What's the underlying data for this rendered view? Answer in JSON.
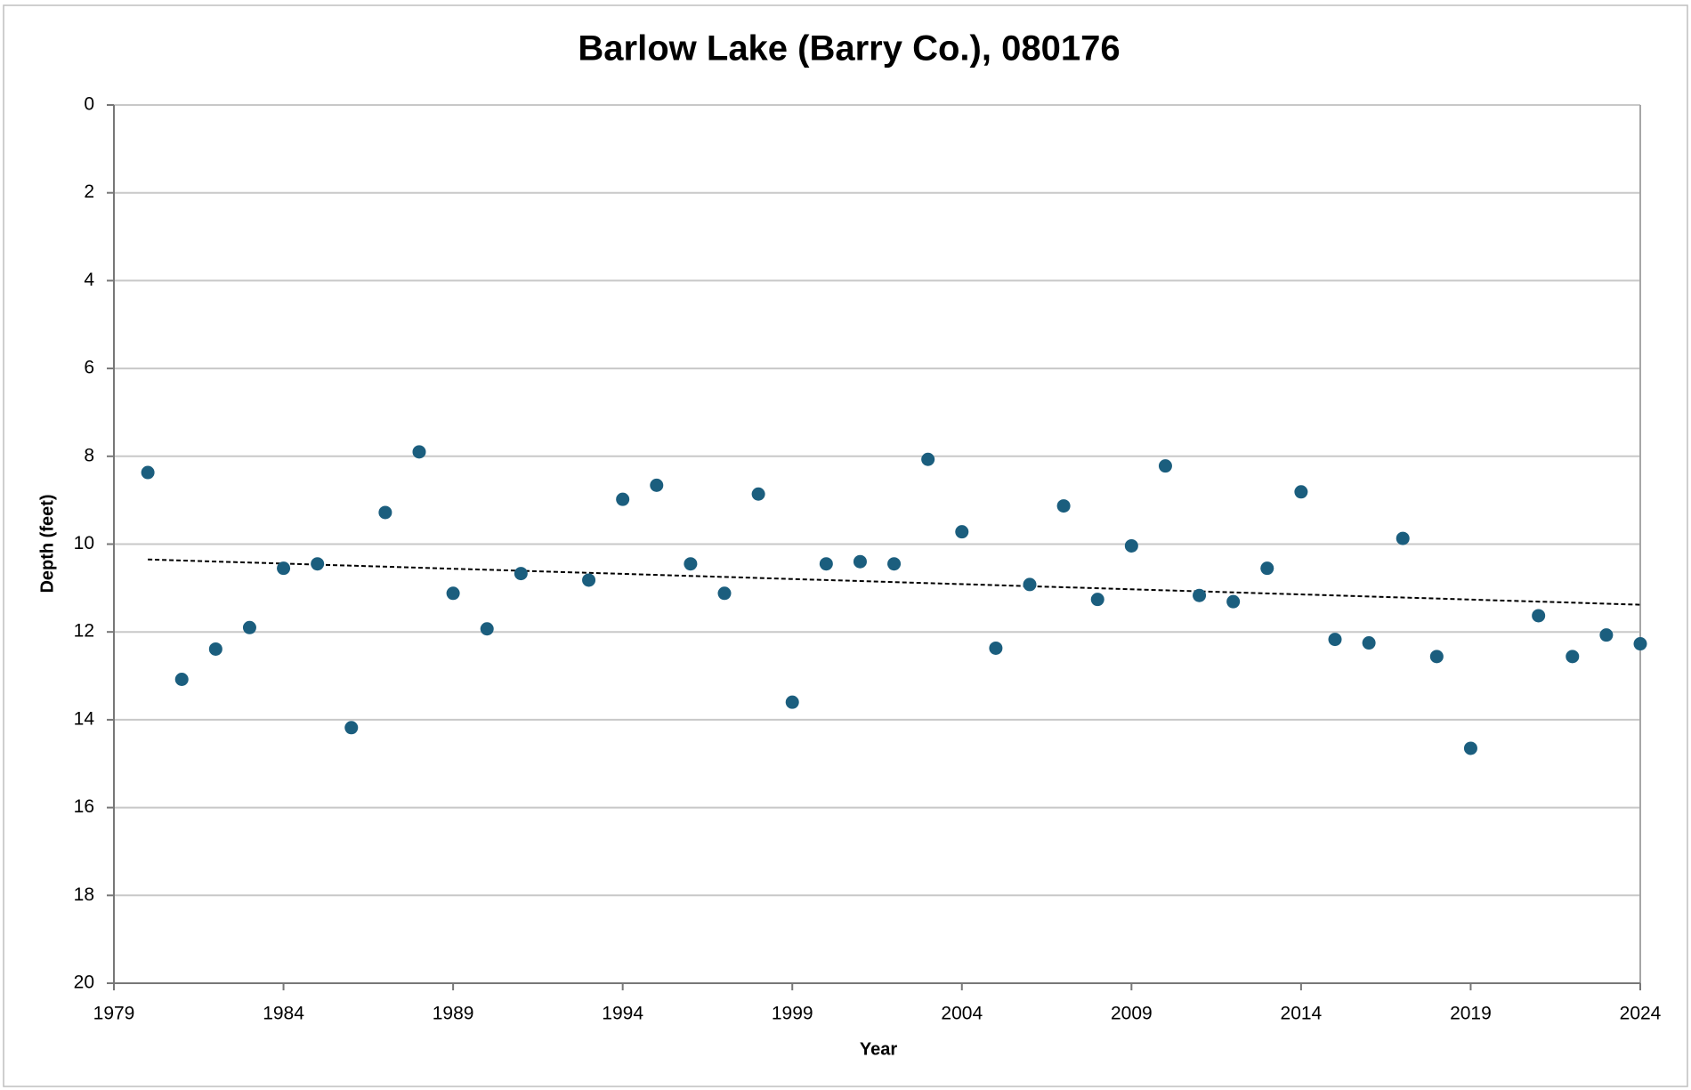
{
  "chart_data": {
    "type": "scatter",
    "title": "Barlow Lake (Barry Co.), 080176",
    "x_label": "Year",
    "y_label": "Depth (feet)",
    "x": [
      1980,
      1981,
      1982,
      1983,
      1984,
      1985,
      1986,
      1987,
      1988,
      1989,
      1990,
      1991,
      1993,
      1994,
      1995,
      1996,
      1997,
      1998,
      1999,
      2000,
      2001,
      2002,
      2003,
      2004,
      2005,
      2006,
      2007,
      2008,
      2009,
      2010,
      2011,
      2012,
      2013,
      2014,
      2015,
      2016,
      2017,
      2018,
      2019,
      2021,
      2022,
      2023,
      2024
    ],
    "values": [
      8.37,
      13.08,
      12.39,
      11.9,
      10.55,
      10.45,
      14.18,
      9.28,
      7.9,
      11.12,
      11.93,
      10.67,
      10.82,
      8.98,
      8.66,
      10.45,
      11.12,
      8.86,
      13.6,
      10.45,
      10.4,
      10.45,
      8.07,
      9.72,
      12.37,
      10.92,
      9.13,
      11.26,
      10.04,
      8.22,
      11.17,
      11.31,
      10.55,
      8.81,
      12.17,
      12.25,
      9.87,
      12.56,
      14.65,
      11.63,
      12.56,
      12.07,
      12.27
    ],
    "color": "#1b5e7e",
    "trendline": {
      "x": [
        1980,
        2024
      ],
      "values": [
        10.35,
        11.38
      ],
      "color": "#000000",
      "dash": true
    },
    "xlim": [
      1979,
      2024
    ],
    "xticks": [
      1979,
      1984,
      1989,
      1994,
      1999,
      2004,
      2009,
      2014,
      2019,
      2024
    ],
    "ylim": [
      0,
      20
    ],
    "yticks": [
      0,
      2,
      4,
      6,
      8,
      10,
      12,
      14,
      16,
      18,
      20
    ],
    "y_inverted": true,
    "grid": true
  }
}
